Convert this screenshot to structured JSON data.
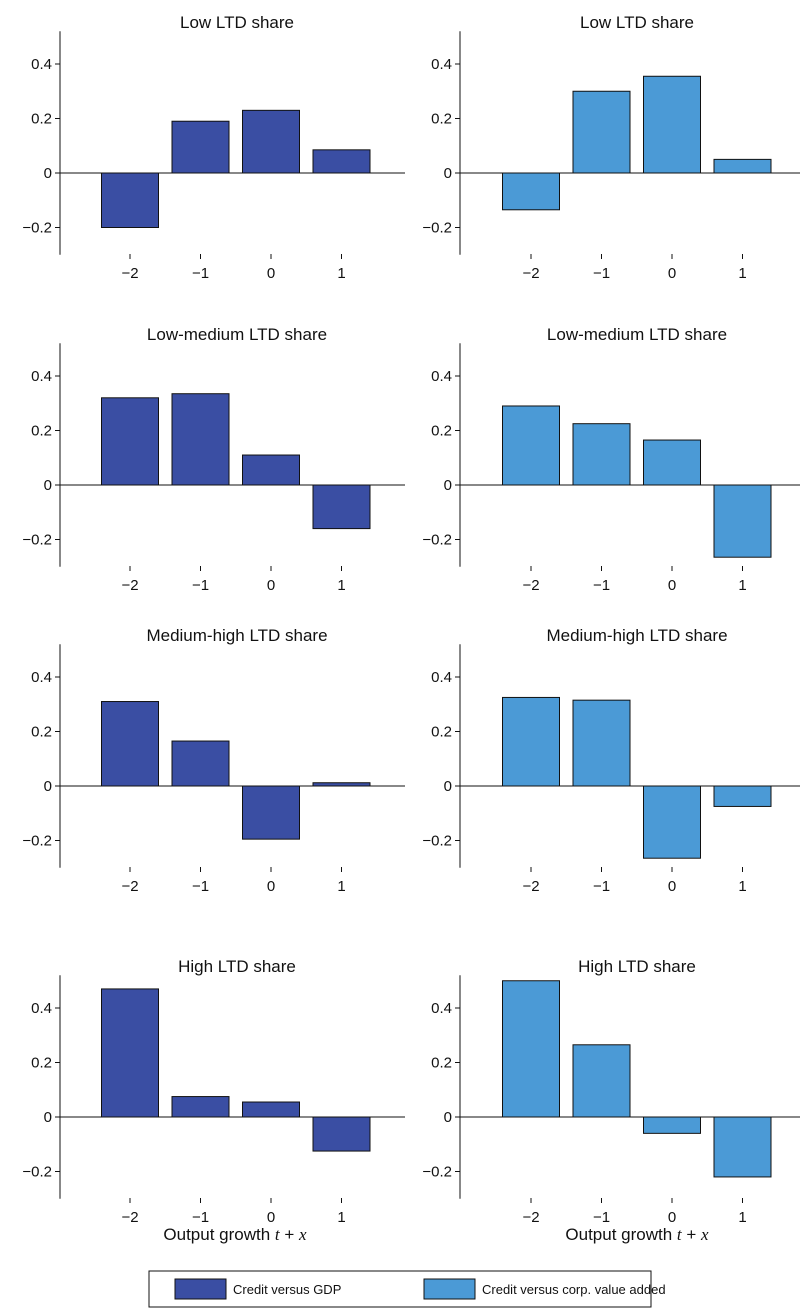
{
  "legend": {
    "items": [
      {
        "label": "Credit versus GDP",
        "color": "#3a4ea3"
      },
      {
        "label": "Credit versus corp. value added",
        "color": "#4b9ad6"
      }
    ]
  },
  "xlabel": {
    "prefix": "Output growth ",
    "var": "t",
    "op": " + ",
    "var2": "x"
  },
  "chart_data": [
    {
      "type": "bar",
      "title": "Low LTD share",
      "series_name": "Credit versus GDP",
      "color": "#3a4ea3",
      "categories": [
        "−2",
        "−1",
        "0",
        "1"
      ],
      "values": [
        -0.2,
        0.19,
        0.23,
        0.085
      ],
      "ylim": [
        -0.3,
        0.52
      ],
      "yticks": [
        {
          "v": -0.2,
          "label": "−0.2"
        },
        {
          "v": 0,
          "label": "0"
        },
        {
          "v": 0.2,
          "label": "0.2"
        },
        {
          "v": 0.4,
          "label": "0.4"
        }
      ]
    },
    {
      "type": "bar",
      "title": "Low LTD share",
      "series_name": "Credit versus corp. value added",
      "color": "#4b9ad6",
      "categories": [
        "−2",
        "−1",
        "0",
        "1"
      ],
      "values": [
        -0.135,
        0.3,
        0.355,
        0.05
      ],
      "ylim": [
        -0.3,
        0.52
      ],
      "yticks": [
        {
          "v": -0.2,
          "label": "−0.2"
        },
        {
          "v": 0,
          "label": "0"
        },
        {
          "v": 0.2,
          "label": "0.2"
        },
        {
          "v": 0.4,
          "label": "0.4"
        }
      ]
    },
    {
      "type": "bar",
      "title": "Low-medium LTD share",
      "series_name": "Credit versus GDP",
      "color": "#3a4ea3",
      "categories": [
        "−2",
        "−1",
        "0",
        "1"
      ],
      "values": [
        0.32,
        0.335,
        0.11,
        -0.16
      ],
      "ylim": [
        -0.3,
        0.52
      ],
      "yticks": [
        {
          "v": -0.2,
          "label": "−0.2"
        },
        {
          "v": 0,
          "label": "0"
        },
        {
          "v": 0.2,
          "label": "0.2"
        },
        {
          "v": 0.4,
          "label": "0.4"
        }
      ]
    },
    {
      "type": "bar",
      "title": "Low-medium LTD share",
      "series_name": "Credit versus corp. value added",
      "color": "#4b9ad6",
      "categories": [
        "−2",
        "−1",
        "0",
        "1"
      ],
      "values": [
        0.29,
        0.225,
        0.165,
        -0.265
      ],
      "ylim": [
        -0.3,
        0.52
      ],
      "yticks": [
        {
          "v": -0.2,
          "label": "−0.2"
        },
        {
          "v": 0,
          "label": "0"
        },
        {
          "v": 0.2,
          "label": "0.2"
        },
        {
          "v": 0.4,
          "label": "0.4"
        }
      ]
    },
    {
      "type": "bar",
      "title": "Medium-high LTD share",
      "series_name": "Credit versus GDP",
      "color": "#3a4ea3",
      "categories": [
        "−2",
        "−1",
        "0",
        "1"
      ],
      "values": [
        0.31,
        0.165,
        -0.195,
        0.012
      ],
      "ylim": [
        -0.3,
        0.52
      ],
      "yticks": [
        {
          "v": -0.2,
          "label": "−0.2"
        },
        {
          "v": 0,
          "label": "0"
        },
        {
          "v": 0.2,
          "label": "0.2"
        },
        {
          "v": 0.4,
          "label": "0.4"
        }
      ]
    },
    {
      "type": "bar",
      "title": "Medium-high LTD share",
      "series_name": "Credit versus corp. value added",
      "color": "#4b9ad6",
      "categories": [
        "−2",
        "−1",
        "0",
        "1"
      ],
      "values": [
        0.325,
        0.315,
        -0.265,
        -0.075
      ],
      "ylim": [
        -0.3,
        0.52
      ],
      "yticks": [
        {
          "v": -0.2,
          "label": "−0.2"
        },
        {
          "v": 0,
          "label": "0"
        },
        {
          "v": 0.2,
          "label": "0.2"
        },
        {
          "v": 0.4,
          "label": "0.4"
        }
      ]
    },
    {
      "type": "bar",
      "title": "High LTD share",
      "series_name": "Credit versus GDP",
      "color": "#3a4ea3",
      "categories": [
        "−2",
        "−1",
        "0",
        "1"
      ],
      "values": [
        0.47,
        0.075,
        0.055,
        -0.125
      ],
      "ylim": [
        -0.3,
        0.52
      ],
      "yticks": [
        {
          "v": -0.2,
          "label": "−0.2"
        },
        {
          "v": 0,
          "label": "0"
        },
        {
          "v": 0.2,
          "label": "0.2"
        },
        {
          "v": 0.4,
          "label": "0.4"
        }
      ]
    },
    {
      "type": "bar",
      "title": "High LTD share",
      "series_name": "Credit versus corp. value added",
      "color": "#4b9ad6",
      "categories": [
        "−2",
        "−1",
        "0",
        "1"
      ],
      "values": [
        0.5,
        0.265,
        -0.06,
        -0.22
      ],
      "ylim": [
        -0.3,
        0.52
      ],
      "yticks": [
        {
          "v": -0.2,
          "label": "−0.2"
        },
        {
          "v": 0,
          "label": "0"
        },
        {
          "v": 0.2,
          "label": "0.2"
        },
        {
          "v": 0.4,
          "label": "0.4"
        }
      ]
    }
  ]
}
